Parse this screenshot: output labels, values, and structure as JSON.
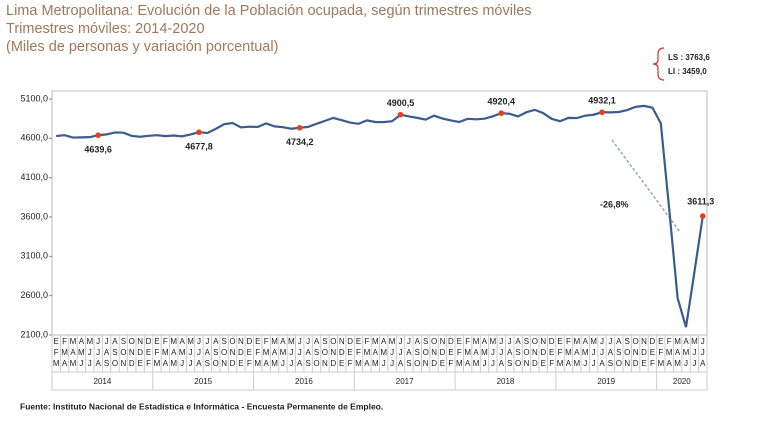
{
  "chart_data": {
    "type": "line",
    "title": "Lima Metropolitana: Evolución de la Población ocupada, según trimestres móviles",
    "subtitle": "Trimestres móviles: 2014-2020",
    "units": "(Miles de personas y variación porcentual)",
    "categories": [
      [
        "E",
        "F",
        "M"
      ],
      [
        "F",
        "M",
        "A"
      ],
      [
        "M",
        "A",
        "M"
      ],
      [
        "A",
        "M",
        "J"
      ],
      [
        "M",
        "J",
        "J"
      ],
      [
        "J",
        "J",
        "A"
      ],
      [
        "J",
        "A",
        "S"
      ],
      [
        "A",
        "S",
        "O"
      ],
      [
        "S",
        "O",
        "N"
      ],
      [
        "O",
        "N",
        "D"
      ],
      [
        "N",
        "D",
        "E"
      ],
      [
        "D",
        "E",
        "F"
      ],
      [
        "E",
        "F",
        "M"
      ],
      [
        "F",
        "M",
        "A"
      ],
      [
        "M",
        "A",
        "M"
      ],
      [
        "A",
        "M",
        "J"
      ],
      [
        "M",
        "J",
        "J"
      ],
      [
        "J",
        "J",
        "A"
      ],
      [
        "J",
        "A",
        "S"
      ],
      [
        "A",
        "S",
        "O"
      ],
      [
        "S",
        "O",
        "N"
      ],
      [
        "O",
        "N",
        "D"
      ],
      [
        "N",
        "D",
        "E"
      ],
      [
        "D",
        "E",
        "F"
      ],
      [
        "E",
        "F",
        "M"
      ],
      [
        "F",
        "M",
        "A"
      ],
      [
        "M",
        "A",
        "M"
      ],
      [
        "A",
        "M",
        "J"
      ],
      [
        "M",
        "J",
        "J"
      ],
      [
        "J",
        "J",
        "A"
      ],
      [
        "J",
        "A",
        "S"
      ],
      [
        "A",
        "S",
        "O"
      ],
      [
        "S",
        "O",
        "N"
      ],
      [
        "O",
        "N",
        "D"
      ],
      [
        "N",
        "D",
        "E"
      ],
      [
        "D",
        "E",
        "F"
      ],
      [
        "E",
        "F",
        "M"
      ],
      [
        "F",
        "M",
        "A"
      ],
      [
        "M",
        "A",
        "M"
      ],
      [
        "A",
        "M",
        "J"
      ],
      [
        "M",
        "J",
        "J"
      ],
      [
        "J",
        "J",
        "A"
      ],
      [
        "J",
        "A",
        "S"
      ],
      [
        "A",
        "S",
        "O"
      ],
      [
        "S",
        "O",
        "N"
      ],
      [
        "O",
        "N",
        "D"
      ],
      [
        "N",
        "D",
        "E"
      ],
      [
        "D",
        "E",
        "F"
      ],
      [
        "E",
        "F",
        "M"
      ],
      [
        "F",
        "M",
        "A"
      ],
      [
        "M",
        "A",
        "M"
      ],
      [
        "A",
        "M",
        "J"
      ],
      [
        "M",
        "J",
        "J"
      ],
      [
        "J",
        "J",
        "A"
      ],
      [
        "J",
        "A",
        "S"
      ],
      [
        "A",
        "S",
        "O"
      ],
      [
        "S",
        "O",
        "N"
      ],
      [
        "O",
        "N",
        "D"
      ],
      [
        "N",
        "D",
        "E"
      ],
      [
        "D",
        "E",
        "F"
      ],
      [
        "E",
        "F",
        "M"
      ],
      [
        "F",
        "M",
        "A"
      ],
      [
        "M",
        "A",
        "M"
      ],
      [
        "A",
        "M",
        "J"
      ],
      [
        "M",
        "J",
        "J"
      ],
      [
        "J",
        "J",
        "A"
      ],
      [
        "J",
        "A",
        "S"
      ],
      [
        "A",
        "S",
        "O"
      ],
      [
        "S",
        "O",
        "N"
      ],
      [
        "O",
        "N",
        "D"
      ],
      [
        "N",
        "D",
        "E"
      ],
      [
        "D",
        "E",
        "F"
      ],
      [
        "E",
        "F",
        "M"
      ],
      [
        "F",
        "M",
        "A"
      ],
      [
        "M",
        "A",
        "M"
      ],
      [
        "A",
        "M",
        "J"
      ],
      [
        "M",
        "J",
        "J"
      ],
      [
        "J",
        "J",
        "A"
      ]
    ],
    "years": [
      "2014",
      "2015",
      "2016",
      "2017",
      "2018",
      "2019",
      "2020"
    ],
    "series": [
      {
        "name": "Población ocupada",
        "color": "#3b5c8f",
        "values": [
          4630,
          4640,
          4610,
          4612,
          4615,
          4639.6,
          4650,
          4675,
          4672,
          4630,
          4620,
          4632,
          4640,
          4628,
          4636,
          4625,
          4650,
          4677.8,
          4668,
          4720,
          4780,
          4795,
          4740,
          4748,
          4745,
          4790,
          4752,
          4742,
          4722,
          4734.2,
          4745,
          4785,
          4822,
          4860,
          4830,
          4800,
          4785,
          4828,
          4808,
          4806,
          4818,
          4900.5,
          4878,
          4860,
          4838,
          4888,
          4852,
          4828,
          4808,
          4848,
          4842,
          4850,
          4880,
          4920.4,
          4912,
          4878,
          4932,
          4962,
          4920,
          4848,
          4818,
          4860,
          4858,
          4888,
          4900,
          4932.1,
          4930,
          4935,
          4960,
          5000,
          5012,
          4990,
          4790,
          3700,
          2570,
          2200,
          2900,
          3611.3
        ],
        "value_labels": [
          null,
          null,
          null,
          null,
          null,
          "4639,6",
          null,
          null,
          null,
          null,
          null,
          null,
          null,
          null,
          null,
          null,
          null,
          "4677,8",
          null,
          null,
          null,
          null,
          null,
          null,
          null,
          null,
          null,
          null,
          null,
          "4734,2",
          null,
          null,
          null,
          null,
          null,
          null,
          null,
          null,
          null,
          null,
          null,
          "4900,5",
          null,
          null,
          null,
          null,
          null,
          null,
          null,
          null,
          null,
          null,
          null,
          "4920,4",
          null,
          null,
          null,
          null,
          null,
          null,
          null,
          null,
          null,
          null,
          null,
          "4932,1",
          null,
          null,
          null,
          null,
          null,
          null,
          null,
          null,
          null,
          null,
          null,
          "3611,3"
        ],
        "marker_color": "#e8401c"
      }
    ],
    "ylim": [
      2100,
      5100
    ],
    "yticks": [
      {
        "value": 2100,
        "label": "2100,0"
      },
      {
        "value": 2600,
        "label": "2600,0"
      },
      {
        "value": 3100,
        "label": "3100,0"
      },
      {
        "value": 3600,
        "label": "3600,0"
      },
      {
        "value": 4100,
        "label": "4100,0"
      },
      {
        "value": 4600,
        "label": "4600,0"
      },
      {
        "value": 5100,
        "label": "5100,0"
      }
    ],
    "grid": false,
    "annotation": "-26,8%",
    "ls_label": "LS : 3763,6",
    "li_label": "LI : 3459,0",
    "source": "Fuente: Instituto Nacional de Estadística e Informática - Encuesta Permanente de Empleo."
  }
}
